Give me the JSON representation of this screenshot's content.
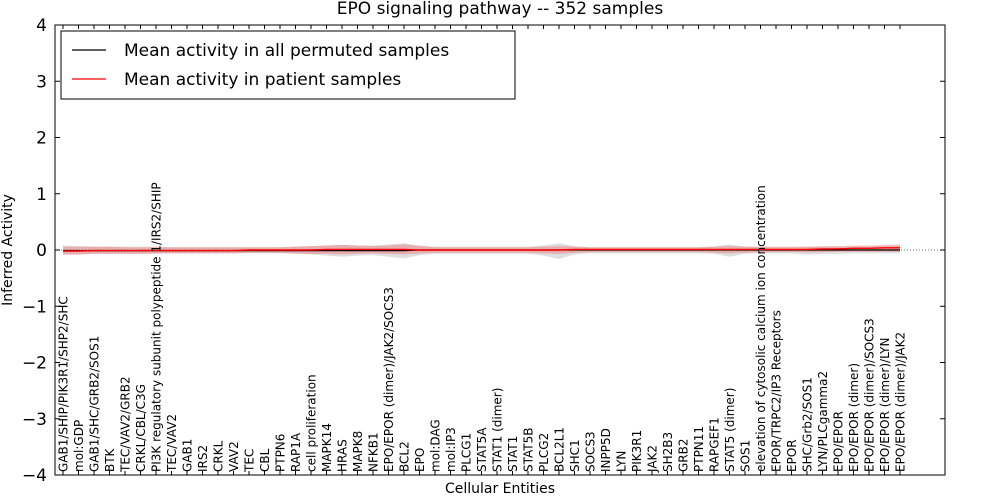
{
  "chart_data": {
    "type": "line",
    "title": "EPO signaling pathway -- 352 samples",
    "xlabel": "Cellular Entities",
    "ylabel": "Inferred Activity",
    "ylim": [
      -4,
      4
    ],
    "yticks": [
      "−4",
      "−3",
      "−2",
      "−1",
      "0",
      "1",
      "2",
      "3",
      "4"
    ],
    "categories": [
      "GAB1/SHIP/PIK3R1/SHP2/SHC",
      "mol:GDP",
      "GAB1/SHC/GRB2/SOS1",
      "BTK",
      "TEC/VAV2/GRB2",
      "CRKL/CBL/C3G",
      "PI3K regulatory subunit polypeptide 1/IRS2/SHIP",
      "TEC/VAV2",
      "GAB1",
      "IRS2",
      "CRKL",
      "VAV2",
      "TEC",
      "CBL",
      "PTPN6",
      "RAP1A",
      "cell proliferation",
      "MAPK14",
      "HRAS",
      "MAPK8",
      "NFKB1",
      "EPO/EPOR (dimer)/JAK2/SOCS3",
      "BCL2",
      "EPO",
      "mol:DAG",
      "mol:IP3",
      "PLCG1",
      "STAT5A",
      "STAT1 (dimer)",
      "STAT1",
      "STAT5B",
      "PLCG2",
      "BCL2L1",
      "SHC1",
      "SOCS3",
      "INPP5D",
      "LYN",
      "PIK3R1",
      "JAK2",
      "SH2B3",
      "GRB2",
      "PTPN11",
      "RAPGEF1",
      "STAT5 (dimer)",
      "SOS1",
      "elevation of cytosolic calcium ion concentration",
      "EPOR/TRPC2/IP3 Receptors",
      "EPOR",
      "SHC/Grb2/SOS1",
      "LYN/PLCgamma2",
      "EPO/EPOR",
      "EPO/EPOR (dimer)",
      "EPO/EPOR (dimer)/SOCS3",
      "EPO/EPOR (dimer)/LYN",
      "EPO/EPOR (dimer)/JAK2"
    ],
    "series": [
      {
        "name": "Mean activity in all permuted samples",
        "color": "#000000",
        "values": [
          -0.01,
          -0.01,
          -0.01,
          -0.01,
          -0.01,
          -0.01,
          -0.01,
          -0.01,
          -0.01,
          -0.01,
          -0.01,
          -0.01,
          -0.01,
          -0.01,
          -0.01,
          -0.01,
          -0.01,
          -0.01,
          -0.01,
          -0.01,
          -0.01,
          -0.01,
          -0.01,
          0.0,
          0.0,
          0.0,
          0.0,
          0.0,
          0.0,
          0.0,
          0.0,
          0.0,
          0.0,
          0.0,
          0.0,
          0.0,
          0.0,
          0.0,
          0.0,
          0.0,
          0.0,
          0.0,
          0.0,
          0.0,
          0.0,
          0.0,
          0.0,
          0.0,
          0.0,
          0.0,
          0.0,
          0.0,
          0.0,
          0.0,
          0.0
        ],
        "band_upper": [
          0.08,
          0.07,
          0.06,
          0.06,
          0.06,
          0.06,
          0.06,
          0.05,
          0.05,
          0.05,
          0.05,
          0.05,
          0.05,
          0.05,
          0.05,
          0.06,
          0.07,
          0.08,
          0.09,
          0.08,
          0.08,
          0.1,
          0.12,
          0.08,
          0.06,
          0.06,
          0.06,
          0.06,
          0.06,
          0.06,
          0.06,
          0.08,
          0.12,
          0.07,
          0.05,
          0.05,
          0.05,
          0.05,
          0.05,
          0.05,
          0.05,
          0.05,
          0.06,
          0.1,
          0.06,
          0.05,
          0.05,
          0.05,
          0.06,
          0.06,
          0.06,
          0.06,
          0.06,
          0.07,
          0.08
        ],
        "band_lower": [
          -0.08,
          -0.08,
          -0.07,
          -0.07,
          -0.07,
          -0.07,
          -0.07,
          -0.06,
          -0.06,
          -0.06,
          -0.06,
          -0.06,
          -0.06,
          -0.06,
          -0.06,
          -0.07,
          -0.08,
          -0.1,
          -0.12,
          -0.1,
          -0.09,
          -0.12,
          -0.15,
          -0.09,
          -0.07,
          -0.07,
          -0.07,
          -0.07,
          -0.07,
          -0.07,
          -0.07,
          -0.1,
          -0.16,
          -0.08,
          -0.06,
          -0.06,
          -0.06,
          -0.06,
          -0.06,
          -0.06,
          -0.06,
          -0.06,
          -0.07,
          -0.12,
          -0.07,
          -0.06,
          -0.06,
          -0.06,
          -0.08,
          -0.07,
          -0.07,
          -0.06,
          -0.06,
          -0.06,
          -0.06
        ]
      },
      {
        "name": "Mean activity in patient samples",
        "color": "#ff0000",
        "values": [
          -0.02,
          -0.02,
          -0.01,
          -0.01,
          -0.01,
          -0.01,
          -0.01,
          -0.01,
          -0.01,
          -0.01,
          -0.01,
          -0.01,
          0.0,
          0.0,
          0.0,
          0.0,
          0.0,
          0.01,
          0.01,
          0.01,
          0.01,
          0.01,
          0.01,
          0.0,
          0.0,
          0.0,
          0.0,
          0.0,
          0.0,
          0.0,
          0.0,
          0.0,
          0.0,
          0.01,
          0.01,
          0.01,
          0.01,
          0.01,
          0.01,
          0.01,
          0.01,
          0.01,
          0.01,
          0.01,
          0.01,
          0.01,
          0.01,
          0.01,
          0.01,
          0.02,
          0.02,
          0.03,
          0.03,
          0.04,
          0.04
        ],
        "band_upper": [
          0.06,
          0.06,
          0.06,
          0.06,
          0.05,
          0.05,
          0.05,
          0.05,
          0.05,
          0.05,
          0.05,
          0.05,
          0.05,
          0.05,
          0.05,
          0.06,
          0.07,
          0.08,
          0.09,
          0.08,
          0.07,
          0.08,
          0.1,
          0.07,
          0.05,
          0.05,
          0.05,
          0.05,
          0.05,
          0.05,
          0.05,
          0.06,
          0.07,
          0.06,
          0.05,
          0.05,
          0.05,
          0.05,
          0.05,
          0.05,
          0.05,
          0.05,
          0.06,
          0.07,
          0.06,
          0.06,
          0.06,
          0.06,
          0.06,
          0.07,
          0.07,
          0.08,
          0.08,
          0.09,
          0.1
        ],
        "band_lower": [
          -0.08,
          -0.08,
          -0.07,
          -0.07,
          -0.07,
          -0.07,
          -0.06,
          -0.06,
          -0.06,
          -0.06,
          -0.06,
          -0.06,
          -0.05,
          -0.05,
          -0.05,
          -0.06,
          -0.07,
          -0.07,
          -0.08,
          -0.07,
          -0.06,
          -0.07,
          -0.08,
          -0.06,
          -0.05,
          -0.05,
          -0.05,
          -0.05,
          -0.05,
          -0.05,
          -0.05,
          -0.06,
          -0.07,
          -0.05,
          -0.04,
          -0.04,
          -0.04,
          -0.04,
          -0.04,
          -0.04,
          -0.04,
          -0.04,
          -0.05,
          -0.06,
          -0.05,
          -0.04,
          -0.04,
          -0.04,
          -0.04,
          -0.04,
          -0.03,
          -0.03,
          -0.03,
          -0.03,
          -0.03
        ]
      }
    ],
    "legend_position": "top-left"
  }
}
